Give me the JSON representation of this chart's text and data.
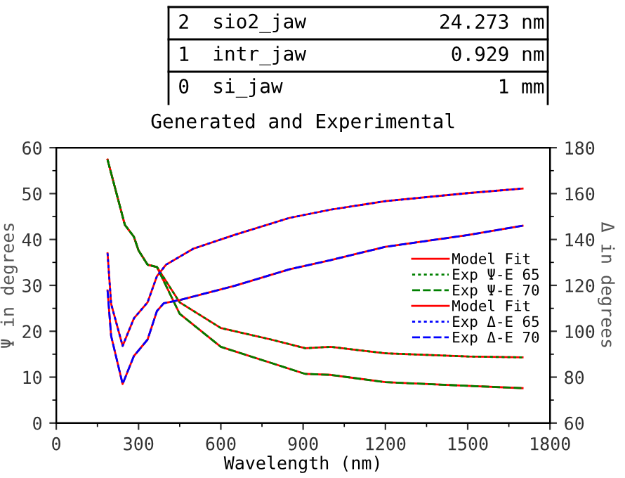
{
  "chart_data": {
    "type": "line",
    "title": "Generated and Experimental",
    "xlabel": "Wavelength (nm)",
    "ylabel": "Ψ in degrees",
    "y2label": "Δ in degrees",
    "annotations": [
      "2",
      "sio2_jaw",
      "24.273 nm",
      "1",
      "intr_jaw",
      "0.929 nm",
      "0",
      "si_jaw",
      "1 mm"
    ],
    "xlim": [
      0,
      1800
    ],
    "xticks": [
      0,
      300,
      600,
      900,
      1200,
      1500,
      1800
    ],
    "ylim": [
      0,
      60
    ],
    "yticks": [
      0,
      10,
      20,
      30,
      40,
      50,
      60
    ],
    "y2lim": [
      60,
      180
    ],
    "y2ticks": [
      60,
      80,
      100,
      120,
      140,
      160,
      180
    ],
    "legend": "right",
    "grid": false,
    "series": [
      {
        "name": "Model Fit",
        "color": "#ff0000",
        "line_style": "solid",
        "x": [
          187,
          250,
          283,
          300,
          333,
          367,
          450,
          600,
          783,
          908,
          1000,
          1200,
          1500,
          1700
        ],
        "values": [
          57.4,
          43.2,
          40.6,
          37.6,
          34.5,
          34,
          26.3,
          20.7,
          18.2,
          16.3,
          16.6,
          15.2,
          14.5,
          14.3
        ]
      },
      {
        "color": "#ff0000",
        "line_style": "solid",
        "x": [
          187,
          250,
          283,
          300,
          333,
          367,
          450,
          600,
          783,
          908,
          1000,
          1200,
          1500,
          1700
        ],
        "values": [
          57.4,
          43.2,
          40.6,
          37.6,
          34.5,
          34,
          23.8,
          16.6,
          13.1,
          10.7,
          10.5,
          8.9,
          8.1,
          7.6
        ]
      },
      {
        "name": "Exp Ψ-E 65",
        "color": "#008000",
        "line_style": "dotted",
        "x": [
          187,
          250,
          283,
          300,
          333,
          367,
          450,
          600,
          783,
          908,
          1000,
          1200,
          1500,
          1700
        ],
        "values": [
          57.4,
          43.2,
          40.6,
          37.6,
          34.5,
          34,
          26.3,
          20.7,
          18.2,
          16.3,
          16.6,
          15.2,
          14.5,
          14.3
        ]
      },
      {
        "name": "Exp Ψ-E 70",
        "color": "#008000",
        "line_style": "dashed",
        "x": [
          187,
          250,
          283,
          300,
          333,
          367,
          450,
          600,
          783,
          908,
          1000,
          1200,
          1500,
          1700
        ],
        "values": [
          57.4,
          43.2,
          40.6,
          37.6,
          34.5,
          34,
          23.8,
          16.6,
          13.1,
          10.7,
          10.5,
          8.9,
          8.1,
          7.6
        ]
      },
      {
        "name": "Model Fit",
        "color": "#ff0000",
        "line_style": "solid",
        "axis": "y2",
        "x": [
          187,
          200,
          242,
          283,
          333,
          367,
          400,
          500,
          650,
          850,
          1000,
          1200,
          1500,
          1700
        ],
        "values": [
          134,
          112,
          93.6,
          105.6,
          112.6,
          124,
          129,
          136,
          142,
          149.4,
          153,
          156.7,
          160.2,
          162.2
        ]
      },
      {
        "color": "#ff0000",
        "line_style": "solid",
        "axis": "y2",
        "x": [
          187,
          200,
          242,
          283,
          333,
          367,
          392,
          450,
          650,
          850,
          1000,
          1200,
          1500,
          1700
        ],
        "values": [
          117.8,
          98,
          77,
          89.2,
          96.4,
          108.8,
          112.2,
          113.6,
          119.8,
          127,
          131,
          136.8,
          141.9,
          146
        ]
      },
      {
        "name": "Exp Δ-E 65",
        "color": "#0000ff",
        "line_style": "dotted",
        "axis": "y2",
        "x": [
          187,
          200,
          242,
          283,
          333,
          367,
          400,
          500,
          650,
          850,
          1000,
          1200,
          1500,
          1700
        ],
        "values": [
          134,
          112,
          93.6,
          105.6,
          112.6,
          124,
          129,
          136,
          142,
          149.4,
          153,
          156.7,
          160.2,
          162.2
        ]
      },
      {
        "name": "Exp Δ-E 70",
        "color": "#0000ff",
        "line_style": "dashed",
        "axis": "y2",
        "x": [
          187,
          200,
          242,
          283,
          333,
          367,
          392,
          450,
          650,
          850,
          1000,
          1200,
          1500,
          1700
        ],
        "values": [
          117.8,
          98,
          77,
          89.2,
          96.4,
          108.8,
          112.2,
          113.6,
          119.8,
          127,
          131,
          136.8,
          141.9,
          146
        ]
      }
    ]
  }
}
